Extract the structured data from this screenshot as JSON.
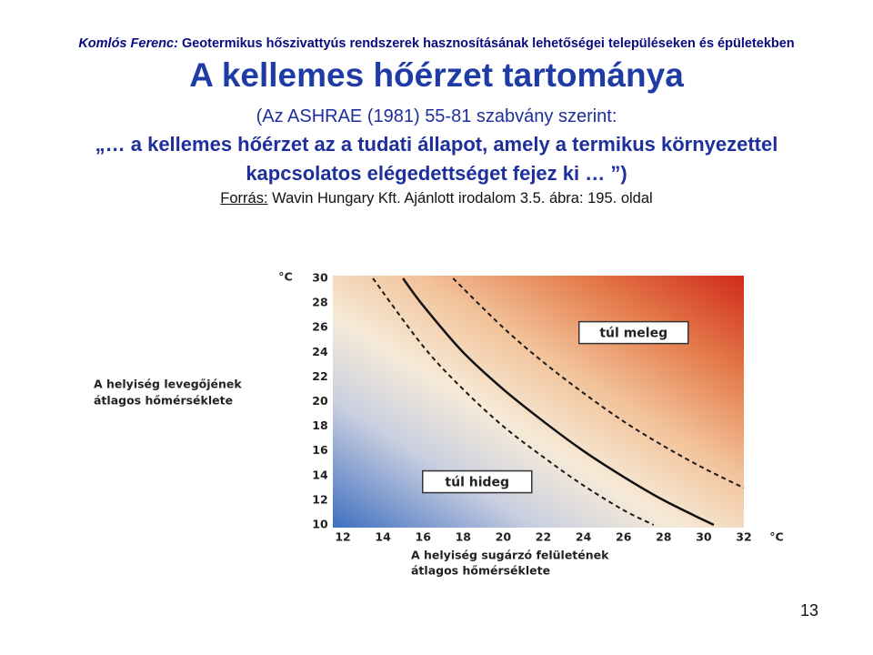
{
  "slide": {
    "author": "Komlós Ferenc:",
    "header": "Geotermikus hőszivattyús rendszerek hasznosításának lehetőségei településeken és épületekben",
    "title": "A kellemes hőérzet tartománya",
    "lines": [
      "(Az ASHRAE (1981) 55-81 szabvány szerint:",
      "„… a kellemes hőérzet az a tudati állapot, amely a termikus környezettel",
      "kapcsolatos elégedettséget fejez ki … ”)"
    ],
    "source_label": "Forrás:",
    "source": "Wavin Hungary Kft. Ajánlott irodalom 3.5. ábra: 195. oldal",
    "page": "13"
  },
  "chart_data": {
    "type": "line",
    "ylabel": [
      "A helyiség levegőjének",
      "átlagos hőmérséklete"
    ],
    "xlabel": [
      "A helyiség sugárzó felületének",
      "átlagos hőmérséklete"
    ],
    "yunit": "°C",
    "xunit": "°C",
    "annotations": [
      {
        "text": "túl meleg",
        "x": 26.5,
        "y": 25.6
      },
      {
        "text": "túl hideg",
        "x": 18.7,
        "y": 13.5
      }
    ],
    "xlim": [
      11.5,
      32
    ],
    "ylim": [
      10,
      30
    ],
    "xticks": [
      12,
      14,
      16,
      18,
      20,
      22,
      24,
      26,
      28,
      30,
      32
    ],
    "yticks": [
      10,
      12,
      14,
      16,
      18,
      20,
      22,
      24,
      26,
      28,
      30
    ],
    "series": [
      {
        "color": "#1a1a1a",
        "dashed": true,
        "x": [
          13.5,
          16,
          18,
          20,
          22,
          24,
          26,
          27.5
        ],
        "y": [
          30,
          24.5,
          21,
          18,
          15.5,
          13.2,
          11.2,
          10
        ]
      },
      {
        "color": "#111111",
        "dashed": false,
        "x": [
          15,
          16,
          18,
          20,
          22,
          24,
          26,
          28,
          30.5
        ],
        "y": [
          30,
          27.8,
          24,
          21,
          18.4,
          16,
          13.9,
          12,
          10
        ]
      },
      {
        "color": "#1a1a1a",
        "dashed": true,
        "x": [
          17.5,
          20,
          22,
          24,
          26,
          28,
          30,
          32
        ],
        "y": [
          30,
          26,
          23.2,
          20.7,
          18.4,
          16.4,
          14.6,
          13
        ]
      }
    ]
  }
}
